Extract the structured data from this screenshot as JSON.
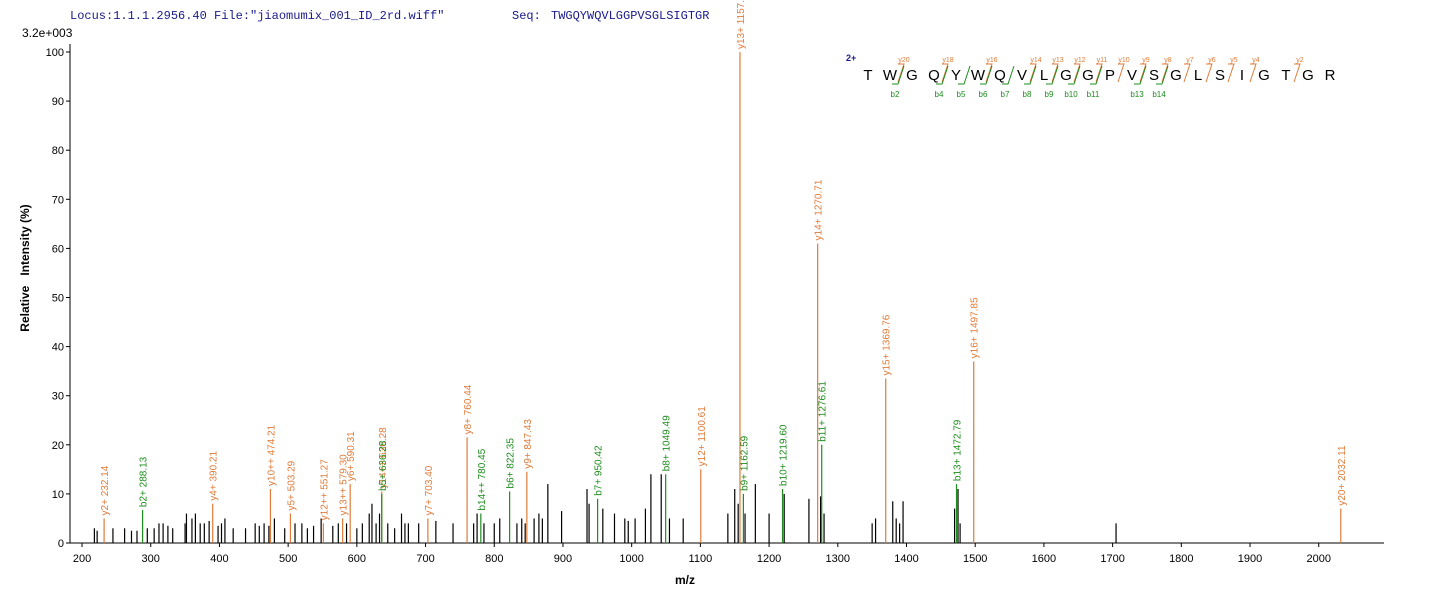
{
  "chart_data": {
    "type": "spectrum",
    "header": {
      "locus": "Locus:1.1.1.2956.40 File:\"jiaomumix_001_ID_2rd.wiff\"",
      "seq_label": "Seq:",
      "seq": "TWGQYWQVLGGPVSGLSIGTGR"
    },
    "scale_label": "3.2e+003",
    "ylabel": "Relative   Intensity (%)",
    "xlabel": "m/z",
    "xlim": [
      182.5,
      2095
    ],
    "ylim": [
      0,
      100
    ],
    "xticks": [
      200,
      300,
      400,
      500,
      600,
      700,
      800,
      900,
      1000,
      1100,
      1200,
      1300,
      1400,
      1500,
      1600,
      1700,
      1800,
      1900,
      2000
    ],
    "yticks": [
      0,
      10,
      20,
      30,
      40,
      50,
      60,
      70,
      80,
      90,
      100
    ],
    "series": [
      {
        "color": "#000000",
        "x": [
          218,
          222,
          245,
          262,
          272,
          280,
          295,
          305,
          312,
          318,
          325,
          332,
          350,
          352,
          360,
          365,
          372,
          378,
          385,
          398,
          403,
          408,
          420,
          438,
          452,
          458,
          465,
          472,
          480,
          495,
          510,
          520,
          528,
          537,
          548,
          565,
          573,
          585,
          600,
          608,
          618,
          622,
          628,
          633,
          645,
          655,
          665,
          670,
          675,
          690,
          715,
          740,
          770,
          775,
          785,
          800,
          808,
          833,
          840,
          845,
          858,
          865,
          870,
          878,
          898,
          935,
          938,
          958,
          975,
          990,
          995,
          1005,
          1020,
          1028,
          1043,
          1055,
          1075,
          1140,
          1150,
          1155,
          1165,
          1180,
          1200,
          1222,
          1258,
          1275,
          1280,
          1350,
          1355,
          1380,
          1385,
          1390,
          1395,
          1470,
          1475,
          1478,
          1705
        ],
        "values": [
          3,
          2.5,
          3,
          3,
          2.5,
          2.5,
          3,
          3,
          4,
          4,
          3.5,
          3,
          4,
          6,
          5,
          6,
          4,
          4,
          4.5,
          3.5,
          4,
          5,
          3,
          3,
          4,
          3.5,
          4,
          3.5,
          5,
          3,
          4,
          4,
          3,
          3.5,
          5,
          3.5,
          4,
          4,
          3,
          4,
          6,
          8,
          4,
          6,
          4,
          3,
          6,
          4,
          4,
          4,
          4.5,
          4,
          4,
          6,
          4,
          4,
          5,
          4,
          5,
          4,
          5,
          6,
          5,
          12,
          6.5,
          11,
          8,
          7,
          6,
          5,
          4.5,
          5,
          7,
          14,
          14,
          5,
          5,
          6,
          11,
          8,
          6,
          12,
          6,
          10,
          9,
          9.5,
          6,
          4,
          5,
          8.5,
          5,
          4,
          8.5,
          7,
          11,
          4,
          4
        ]
      },
      {
        "color": "#e07b39",
        "x": [
          232.14,
          390.21,
          474.21,
          503.29,
          551.27,
          579.3,
          590.31,
          636.28,
          703.4,
          760.44,
          847.43,
          1100.61,
          1157.63,
          1270.71,
          1369.76,
          1497.85,
          2032.11
        ],
        "values": [
          5,
          8,
          11,
          6,
          4,
          5,
          12,
          10.5,
          5,
          21.5,
          14.5,
          15,
          100,
          61,
          33.5,
          37,
          7
        ],
        "labels": [
          "y2+ 232.14",
          "y4+ 390.21",
          "y10++ 474.21",
          "y5+ 503.29",
          "y12++ 551.27",
          "y13++ 579.30",
          "y6+ 590.31",
          "y14++ 636.28",
          "y7+ 703.40",
          "y8+ 760.44",
          "y9+ 847.43",
          "y12+ 1100.61",
          "y13+ 1157.63",
          "y14+ 1270.71",
          "y15+ 1369.76",
          "y16+ 1497.85",
          "y20+ 2032.11"
        ]
      },
      {
        "color": "#1e8c1e",
        "x": [
          288.13,
          636.28,
          780.45,
          822.35,
          950.42,
          1049.49,
          1162.59,
          1219.6,
          1276.61,
          1472.79
        ],
        "values": [
          6.7,
          10,
          6,
          10.5,
          9,
          14,
          10,
          11,
          20,
          12
        ],
        "labels": [
          "b2+ 288.13",
          "b5+ 636.28",
          "b14++ 780.45",
          "b6+ 822.35",
          "b7+ 950.42",
          "b8+ 1049.49",
          "b9+ 1162.59",
          "b10+ 1219.60",
          "b11+ 1276.61",
          "b13+ 1472.79"
        ]
      }
    ],
    "peptide": {
      "charge": "2+",
      "residues": [
        "T",
        "W",
        "G",
        "Q",
        "Y",
        "W",
        "Q",
        "V",
        "L",
        "G",
        "G",
        "P",
        "V",
        "S",
        "G",
        "L",
        "S",
        "I",
        "G",
        "T",
        "G",
        "R"
      ],
      "y_ions": [
        "y20",
        "y18",
        "y16",
        "y14",
        "y13",
        "y12",
        "y11",
        "y10",
        "y9",
        "y8",
        "y7",
        "y6",
        "y5",
        "y4",
        "y2"
      ],
      "b_ions": [
        "b2",
        "b4",
        "b5",
        "b6",
        "b7",
        "b8",
        "b9",
        "b10",
        "b11",
        "b13",
        "b14"
      ]
    }
  }
}
